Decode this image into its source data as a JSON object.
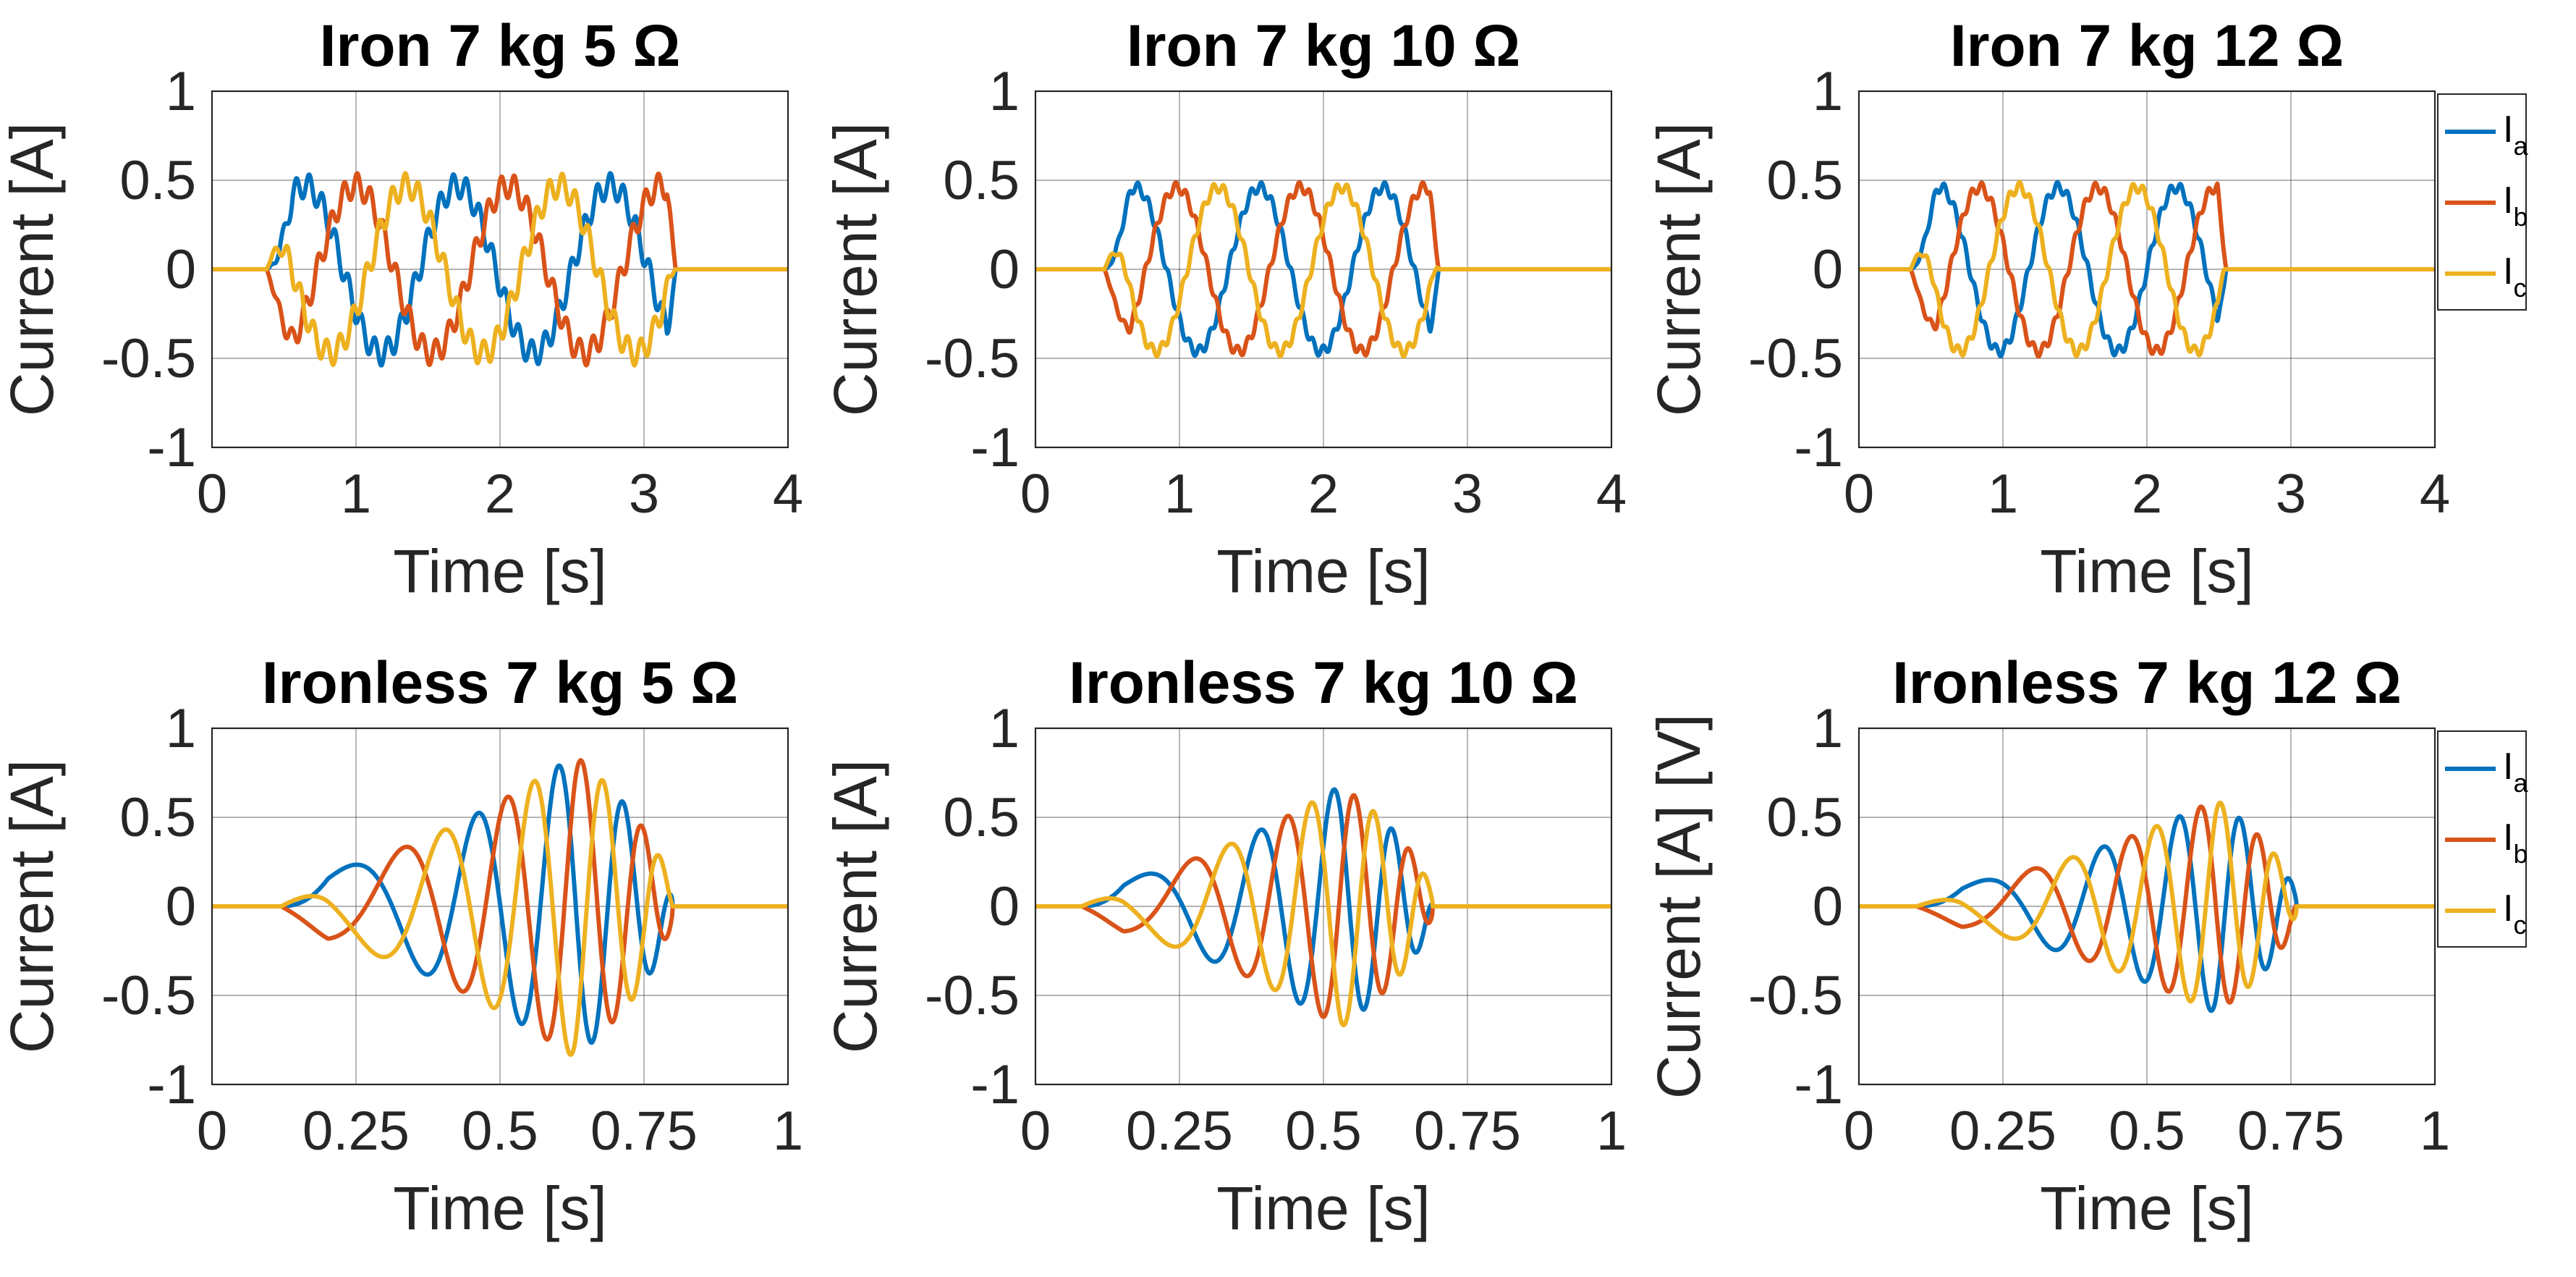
{
  "figure": {
    "colors": {
      "Ia": "#0072BD",
      "Ib": "#D95319",
      "Ic": "#EDB120",
      "grid": "#262626",
      "axes": "#262626"
    },
    "chart_data": [
      {
        "type": "line",
        "title": "Iron 7 kg 5 Ω",
        "xlabel": "Time [s]",
        "ylabel": "Current [A]",
        "xlim": [
          0,
          4
        ],
        "ylim": [
          -1,
          1
        ],
        "xticks": [
          0,
          1,
          2,
          3,
          4
        ],
        "xticklabels": [
          "0",
          "1",
          "2",
          "3",
          "4"
        ],
        "yticks": [
          1,
          0.5,
          0,
          -0.5,
          -1
        ],
        "yticklabels": [
          "1",
          "0.5",
          "0",
          "-0.5",
          "-1"
        ],
        "grid": true,
        "legend": null,
        "wave": {
          "kind": "iron",
          "t0": 0.38,
          "t1": 3.22,
          "period": 1.06,
          "amp": 0.47,
          "ripple": 0.07,
          "ripple_freq": 11
        },
        "series": [
          {
            "name": "Ia",
            "color": "#0072BD",
            "phase_deg": 0
          },
          {
            "name": "Ib",
            "color": "#D95319",
            "phase_deg": -120
          },
          {
            "name": "Ic",
            "color": "#EDB120",
            "phase_deg": 120
          }
        ]
      },
      {
        "type": "line",
        "title": "Iron 7 kg 10 Ω",
        "xlabel": "Time [s]",
        "ylabel": "Current [A]",
        "xlim": [
          0,
          4
        ],
        "ylim": [
          -1,
          1
        ],
        "xticks": [
          0,
          1,
          2,
          3,
          4
        ],
        "xticklabels": [
          "0",
          "1",
          "2",
          "3",
          "4"
        ],
        "yticks": [
          1,
          0.5,
          0,
          -0.5,
          -1
        ],
        "yticklabels": [
          "1",
          "0.5",
          "0",
          "-0.5",
          "-1"
        ],
        "grid": true,
        "legend": null,
        "wave": {
          "kind": "iron",
          "t0": 0.48,
          "t1": 2.8,
          "period": 0.86,
          "amp": 0.46,
          "ripple": 0.03,
          "ripple_freq": 14
        },
        "series": [
          {
            "name": "Ia",
            "color": "#0072BD",
            "phase_deg": 0
          },
          {
            "name": "Ib",
            "color": "#D95319",
            "phase_deg": -120
          },
          {
            "name": "Ic",
            "color": "#EDB120",
            "phase_deg": 120
          }
        ]
      },
      {
        "type": "line",
        "title": "Iron 7 kg 12 Ω",
        "xlabel": "Time [s]",
        "ylabel": "Current [A]",
        "xlim": [
          0,
          4
        ],
        "ylim": [
          -1,
          1
        ],
        "xticks": [
          0,
          1,
          2,
          3,
          4
        ],
        "xticklabels": [
          "0",
          "1",
          "2",
          "3",
          "4"
        ],
        "yticks": [
          1,
          0.5,
          0,
          -0.5,
          -1
        ],
        "yticklabels": [
          "1",
          "0.5",
          "0",
          "-0.5",
          "-1"
        ],
        "grid": true,
        "legend": {
          "placement": "outside-right",
          "entries": [
            {
              "base": "I",
              "sub": "a"
            },
            {
              "base": "I",
              "sub": "b"
            },
            {
              "base": "I",
              "sub": "c"
            }
          ]
        },
        "wave": {
          "kind": "iron",
          "t0": 0.36,
          "t1": 2.55,
          "period": 0.82,
          "amp": 0.46,
          "ripple": 0.03,
          "ripple_freq": 14
        },
        "series": [
          {
            "name": "Ia",
            "color": "#0072BD",
            "phase_deg": 0
          },
          {
            "name": "Ib",
            "color": "#D95319",
            "phase_deg": -120
          },
          {
            "name": "Ic",
            "color": "#EDB120",
            "phase_deg": 120
          }
        ]
      },
      {
        "type": "line",
        "title": "Ironless 7 kg 5 Ω",
        "xlabel": "Time [s]",
        "ylabel": "Current [A]",
        "xlim": [
          0,
          1
        ],
        "ylim": [
          -1,
          1
        ],
        "xticks": [
          0,
          0.25,
          0.5,
          0.75,
          1
        ],
        "xticklabels": [
          "0",
          "0.25",
          "0.5",
          "0.75",
          "1"
        ],
        "yticks": [
          1,
          0.5,
          0,
          -0.5,
          -1
        ],
        "yticklabels": [
          "1",
          "0.5",
          "0",
          "-0.5",
          "-1"
        ],
        "grid": true,
        "legend": null,
        "wave": {
          "kind": "chirp",
          "t0": 0.12,
          "t1": 0.8,
          "freq0": 1.2,
          "freq1": 11.0,
          "peak_t": 0.63,
          "amp": 0.85,
          "amp_min": 0.16
        },
        "series": [
          {
            "name": "Ia",
            "color": "#0072BD",
            "phase_deg": 0
          },
          {
            "name": "Ib",
            "color": "#D95319",
            "phase_deg": -120
          },
          {
            "name": "Ic",
            "color": "#EDB120",
            "phase_deg": 120
          }
        ]
      },
      {
        "type": "line",
        "title": "Ironless 7 kg 10 Ω",
        "xlabel": "Time [s]",
        "ylabel": "Current [A]",
        "xlim": [
          0,
          1
        ],
        "ylim": [
          -1,
          1
        ],
        "xticks": [
          0,
          0.25,
          0.5,
          0.75,
          1
        ],
        "xticklabels": [
          "0",
          "0.25",
          "0.5",
          "0.75",
          "1"
        ],
        "yticks": [
          1,
          0.5,
          0,
          -0.5,
          -1
        ],
        "yticklabels": [
          "1",
          "0.5",
          "0",
          "-0.5",
          "-1"
        ],
        "grid": true,
        "legend": null,
        "wave": {
          "kind": "chirp",
          "t0": 0.08,
          "t1": 0.69,
          "freq0": 1.3,
          "freq1": 12.0,
          "peak_t": 0.53,
          "amp": 0.68,
          "amp_min": 0.12
        },
        "series": [
          {
            "name": "Ia",
            "color": "#0072BD",
            "phase_deg": 0
          },
          {
            "name": "Ib",
            "color": "#D95319",
            "phase_deg": -120
          },
          {
            "name": "Ic",
            "color": "#EDB120",
            "phase_deg": 120
          }
        ]
      },
      {
        "type": "line",
        "title": "Ironless 7 kg 12 Ω",
        "xlabel": "Time [s]",
        "ylabel": "Current [A] [V]",
        "xlim": [
          0,
          1
        ],
        "ylim": [
          -1,
          1
        ],
        "xticks": [
          0,
          0.25,
          0.5,
          0.75,
          1
        ],
        "xticklabels": [
          "0",
          "0.25",
          "0.5",
          "0.75",
          "1"
        ],
        "yticks": [
          1,
          0.5,
          0,
          -0.5,
          -1
        ],
        "yticklabels": [
          "1",
          "0.5",
          "0",
          "-0.5",
          "-1"
        ],
        "grid": true,
        "legend": {
          "placement": "outside-right",
          "entries": [
            {
              "base": "I",
              "sub": "a"
            },
            {
              "base": "I",
              "sub": "b"
            },
            {
              "base": "I",
              "sub": "c"
            }
          ]
        },
        "wave": {
          "kind": "chirp",
          "t0": 0.1,
          "t1": 0.76,
          "freq0": 1.2,
          "freq1": 12.0,
          "peak_t": 0.62,
          "amp": 0.6,
          "amp_min": 0.1
        },
        "series": [
          {
            "name": "Ia",
            "color": "#0072BD",
            "phase_deg": 0
          },
          {
            "name": "Ib",
            "color": "#D95319",
            "phase_deg": -120
          },
          {
            "name": "Ic",
            "color": "#EDB120",
            "phase_deg": 120
          }
        ]
      }
    ]
  }
}
